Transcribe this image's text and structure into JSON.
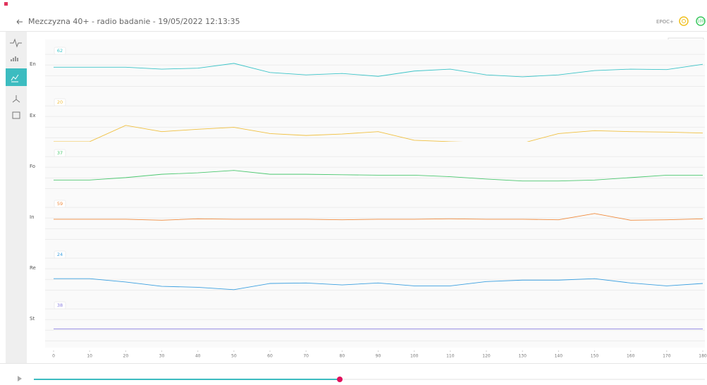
{
  "header": {
    "title": "Mezczyzna 40+ - radio badanie - 19/05/2022 12:13:35",
    "device": "EPOC+",
    "battery": "100"
  },
  "chart_data": [
    {
      "type": "line",
      "label": "En",
      "badge": "62",
      "color": "#3cc4c8",
      "xlim": [
        0,
        180
      ],
      "ylim": [
        0,
        100
      ],
      "x": [
        0,
        10,
        20,
        30,
        40,
        50,
        60,
        70,
        80,
        90,
        100,
        110,
        120,
        130,
        140,
        150,
        160,
        170,
        180
      ],
      "values": [
        51,
        51,
        51,
        47,
        49,
        59,
        40,
        35,
        38,
        32,
        43,
        47,
        35,
        31,
        35,
        44,
        47,
        46,
        57
      ]
    },
    {
      "type": "line",
      "label": "Ex",
      "badge": "20",
      "color": "#f0c040",
      "xlim": [
        0,
        180
      ],
      "ylim": [
        0,
        100
      ],
      "x": [
        0,
        10,
        20,
        30,
        40,
        50,
        60,
        70,
        80,
        90,
        100,
        110,
        120,
        130,
        140,
        150,
        160,
        170,
        180
      ],
      "values": [
        3,
        3,
        37,
        24,
        29,
        33,
        20,
        16,
        19,
        24,
        6,
        3,
        1,
        0,
        20,
        26,
        24,
        23,
        21
      ]
    },
    {
      "type": "line",
      "label": "Fo",
      "badge": "37",
      "color": "#4cc870",
      "xlim": [
        0,
        180
      ],
      "ylim": [
        0,
        100
      ],
      "x": [
        0,
        10,
        20,
        30,
        40,
        50,
        60,
        70,
        80,
        90,
        100,
        110,
        120,
        130,
        140,
        150,
        160,
        170,
        180
      ],
      "values": [
        29,
        29,
        34,
        41,
        44,
        49,
        41,
        41,
        40,
        39,
        39,
        36,
        31,
        27,
        27,
        29,
        34,
        39,
        39
      ]
    },
    {
      "type": "line",
      "label": "In",
      "badge": "59",
      "color": "#f08a3c",
      "xlim": [
        0,
        180
      ],
      "ylim": [
        0,
        100
      ],
      "x": [
        0,
        10,
        20,
        30,
        40,
        50,
        60,
        70,
        80,
        90,
        100,
        110,
        120,
        130,
        140,
        150,
        160,
        170,
        180
      ],
      "values": [
        53,
        53,
        53,
        51,
        54,
        53,
        53,
        53,
        52,
        53,
        53,
        54,
        53,
        53,
        52,
        65,
        51,
        52,
        54
      ]
    },
    {
      "type": "line",
      "label": "Re",
      "badge": "24",
      "color": "#3ca0e0",
      "xlim": [
        0,
        180
      ],
      "ylim": [
        0,
        100
      ],
      "x": [
        0,
        10,
        20,
        30,
        40,
        50,
        60,
        70,
        80,
        90,
        100,
        110,
        120,
        130,
        140,
        150,
        160,
        170,
        180
      ],
      "values": [
        35,
        35,
        28,
        19,
        17,
        12,
        25,
        26,
        22,
        26,
        20,
        20,
        29,
        32,
        32,
        35,
        26,
        20,
        25
      ]
    },
    {
      "type": "line",
      "label": "St",
      "badge": "38",
      "color": "#8c80e0",
      "xlim": [
        0,
        180
      ],
      "ylim": [
        0,
        100
      ],
      "x": [
        0,
        10,
        20,
        30,
        40,
        50,
        60,
        70,
        80,
        90,
        100,
        110,
        120,
        130,
        140,
        150,
        160,
        170,
        180
      ],
      "values": [
        36,
        36,
        36,
        36,
        36,
        36,
        36,
        36,
        36,
        36,
        36,
        36,
        36,
        36,
        36,
        36,
        36,
        36,
        36
      ],
      "xticks": [
        0,
        10,
        20,
        30,
        40,
        50,
        60,
        70,
        80,
        90,
        100,
        110,
        120,
        130,
        140,
        150,
        160,
        170,
        180
      ]
    }
  ]
}
